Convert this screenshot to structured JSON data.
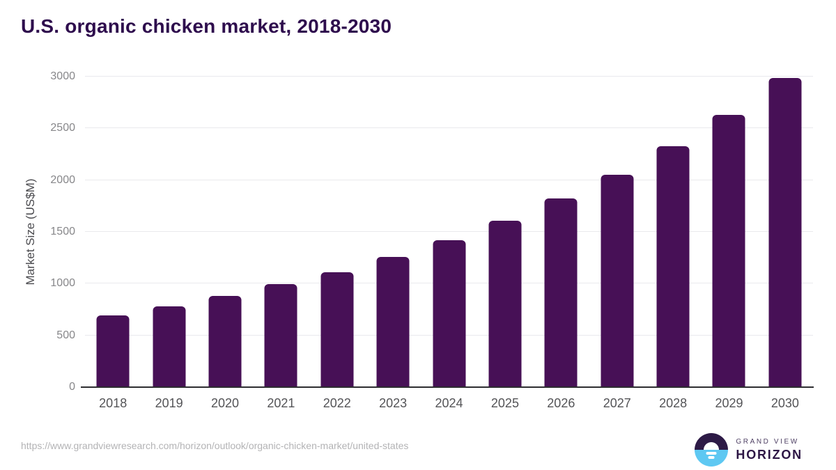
{
  "chart_data": {
    "type": "bar",
    "title": "U.S. organic chicken market, 2018-2030",
    "categories": [
      "2018",
      "2019",
      "2020",
      "2021",
      "2022",
      "2023",
      "2024",
      "2025",
      "2026",
      "2027",
      "2028",
      "2029",
      "2030"
    ],
    "values": [
      690,
      780,
      880,
      995,
      1110,
      1255,
      1420,
      1610,
      1820,
      2055,
      2325,
      2630,
      2990
    ],
    "xlabel": "",
    "ylabel": "Market Size (US$M)",
    "ylim": [
      0,
      3000
    ],
    "yticks": [
      0,
      500,
      1000,
      1500,
      2000,
      2500,
      3000
    ],
    "grid": true,
    "legend": "none",
    "bar_color": "#471056"
  },
  "footer": {
    "source_url": "https://www.grandviewresearch.com/horizon/outlook/organic-chicken-market/united-states"
  },
  "logo": {
    "line1": "GRAND VIEW",
    "line2": "HORIZON"
  },
  "colors": {
    "title_text": "#2e0d4d",
    "bar": "#471056",
    "gridline": "#e9e9ed",
    "axis_line": "#2d2d30",
    "y_tick_text": "#87878a",
    "x_tick_text": "#545457",
    "source_text": "#b3b3b5",
    "logo_purple": "#2d1a46",
    "logo_blue": "#5ec8f2"
  }
}
